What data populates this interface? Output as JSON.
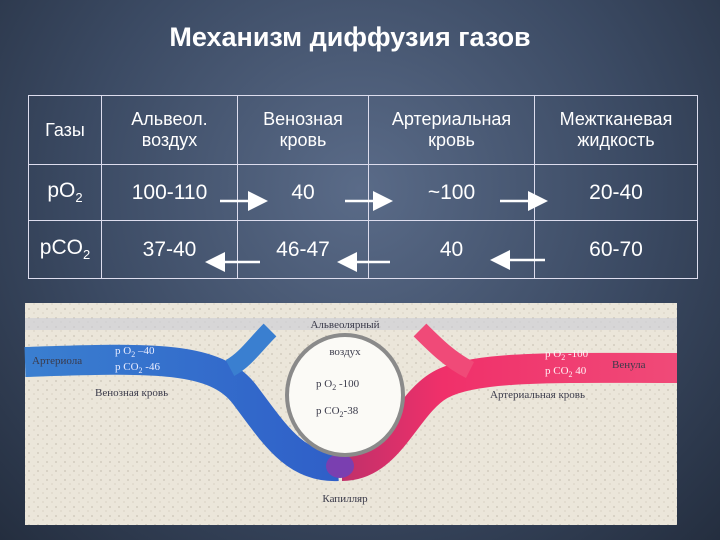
{
  "title": "Механизм диффузия газов",
  "table": {
    "headers": [
      "Газы",
      "Альвеол. воздух",
      "Венозная кровь",
      "Артериальная кровь",
      "Межтканевая жидкость"
    ],
    "rows": [
      [
        {
          "base": "pO",
          "sub": "2"
        },
        "100-110",
        "40",
        "~100",
        "20-40"
      ],
      [
        {
          "base": "pCO",
          "sub": "2"
        },
        "37-40",
        "46-47",
        "40",
        "60-70"
      ]
    ]
  },
  "diagram": {
    "alveolus": [
      "Альвеолярный",
      "воздух"
    ],
    "alveolus_o2": {
      "pre": "p O",
      "sub": "2",
      "post": " -100"
    },
    "alveolus_co2": {
      "pre": "p CO",
      "sub": "2",
      "post": "-38"
    },
    "arteriole": "Артериола",
    "arteriole_o2": {
      "pre": "p O",
      "sub": "2",
      "post": " –40"
    },
    "arteriole_co2": {
      "pre": "p CO",
      "sub": "2",
      "post": " -46"
    },
    "venous_blood": "Венозная кровь",
    "capillary": "Капилляр",
    "venule": "Венула",
    "venule_o2": {
      "pre": "p O",
      "sub": "2",
      "post": " -100"
    },
    "venule_co2": {
      "pre": "p CO",
      "sub": "2",
      "post": " 40"
    },
    "arterial_blood": "Артериальная кровь"
  }
}
